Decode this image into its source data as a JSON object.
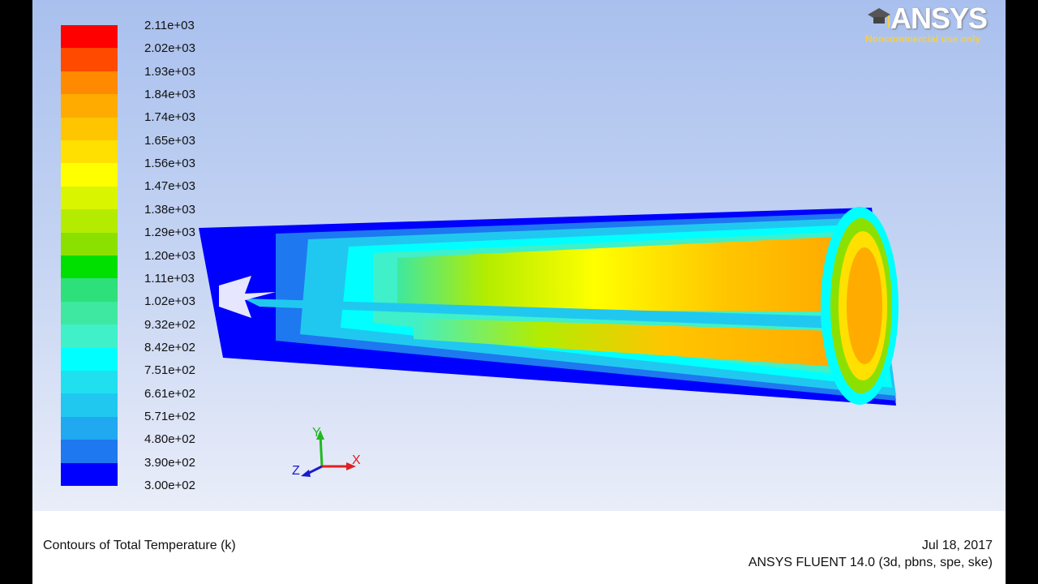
{
  "legend": {
    "labels": [
      "2.11e+03",
      "2.02e+03",
      "1.93e+03",
      "1.84e+03",
      "1.74e+03",
      "1.65e+03",
      "1.56e+03",
      "1.47e+03",
      "1.38e+03",
      "1.29e+03",
      "1.20e+03",
      "1.11e+03",
      "1.02e+03",
      "9.32e+02",
      "8.42e+02",
      "7.51e+02",
      "6.61e+02",
      "5.71e+02",
      "4.80e+02",
      "3.90e+02",
      "3.00e+02"
    ],
    "colors": [
      "#ff0000",
      "#ff4a00",
      "#ff8a00",
      "#ffab00",
      "#ffc500",
      "#ffe000",
      "#ffff00",
      "#d9f500",
      "#b3ec00",
      "#8ce000",
      "#00e000",
      "#2ee07a",
      "#3ee8a0",
      "#40f0c8",
      "#00ffff",
      "#20e0f0",
      "#20c8f0",
      "#20a8f0",
      "#1e78f0",
      "#0000ff"
    ]
  },
  "logo": {
    "name": "ANSYS",
    "subtitle": "Noncommercial use only"
  },
  "axes": {
    "y_label": "Y",
    "x_label": "X",
    "z_label": "Z"
  },
  "footer": {
    "title": "Contours of Total Temperature (k)",
    "date": "Jul 18, 2017",
    "version": "ANSYS FLUENT 14.0 (3d, pbns, spe, ske)"
  }
}
